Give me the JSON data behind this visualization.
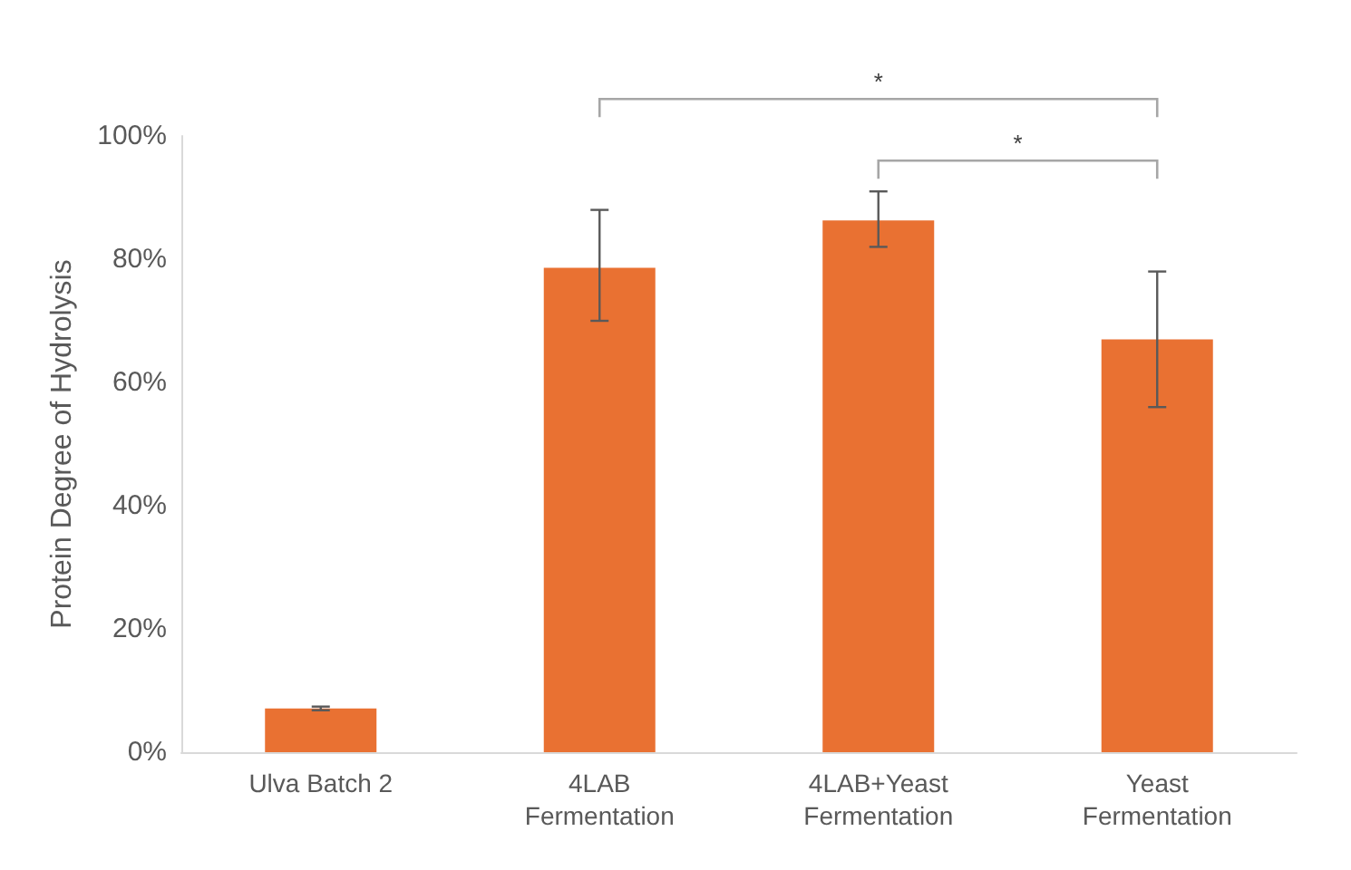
{
  "chart_data": {
    "type": "bar",
    "ylabel": "Protein Degree of Hydrolysis",
    "categories": [
      "Ulva Batch 2",
      "4LAB\nFermentation",
      "4LAB+Yeast\nFermentation",
      "Yeast\nFermentation"
    ],
    "values": [
      7.1,
      78.6,
      86.3,
      67.0
    ],
    "errors": [
      0.3,
      [
        70,
        88
      ],
      [
        82,
        91
      ],
      [
        56,
        78
      ]
    ],
    "color": "#e97132",
    "ylim": [
      0,
      100
    ],
    "yticks": [
      {
        "value": 0,
        "label": "0%"
      },
      {
        "value": 20,
        "label": "20%"
      },
      {
        "value": 40,
        "label": "40%"
      },
      {
        "value": 60,
        "label": "60%"
      },
      {
        "value": 80,
        "label": "80%"
      },
      {
        "value": 100,
        "label": "100%"
      }
    ],
    "grid": false,
    "annotations": [
      "*",
      "*"
    ]
  }
}
